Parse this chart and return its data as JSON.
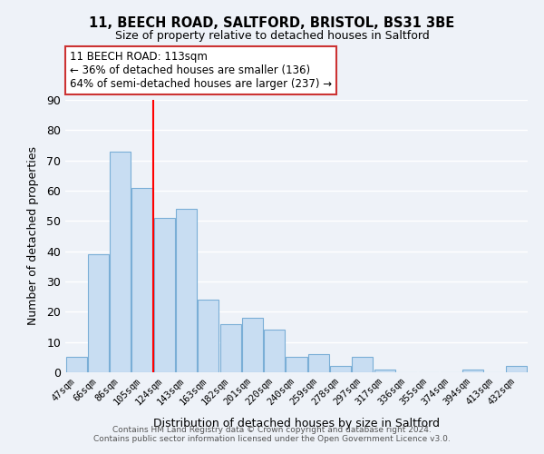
{
  "title": "11, BEECH ROAD, SALTFORD, BRISTOL, BS31 3BE",
  "subtitle": "Size of property relative to detached houses in Saltford",
  "xlabel": "Distribution of detached houses by size in Saltford",
  "ylabel": "Number of detached properties",
  "categories": [
    "47sqm",
    "66sqm",
    "86sqm",
    "105sqm",
    "124sqm",
    "143sqm",
    "163sqm",
    "182sqm",
    "201sqm",
    "220sqm",
    "240sqm",
    "259sqm",
    "278sqm",
    "297sqm",
    "317sqm",
    "336sqm",
    "355sqm",
    "374sqm",
    "394sqm",
    "413sqm",
    "432sqm"
  ],
  "values": [
    5,
    39,
    73,
    61,
    51,
    54,
    24,
    16,
    18,
    14,
    5,
    6,
    2,
    5,
    1,
    0,
    0,
    0,
    1,
    0,
    2
  ],
  "bar_color": "#c8ddf2",
  "bar_edge_color": "#7aaed6",
  "background_color": "#eef2f8",
  "grid_color": "#ffffff",
  "red_line_x": 3.5,
  "annotation_line1": "11 BEECH ROAD: 113sqm",
  "annotation_line2": "← 36% of detached houses are smaller (136)",
  "annotation_line3": "64% of semi-detached houses are larger (237) →",
  "ylim": [
    0,
    90
  ],
  "yticks": [
    0,
    10,
    20,
    30,
    40,
    50,
    60,
    70,
    80,
    90
  ],
  "footer1": "Contains HM Land Registry data © Crown copyright and database right 2024.",
  "footer2": "Contains public sector information licensed under the Open Government Licence v3.0."
}
